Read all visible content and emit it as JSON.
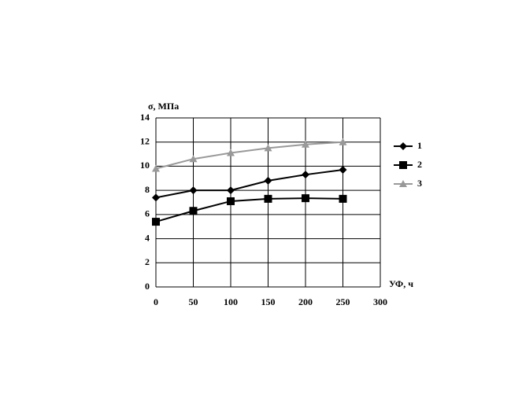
{
  "chart_data": {
    "type": "line",
    "y_label": "σ, МПа",
    "x_label": "УФ, ч",
    "x": [
      0,
      50,
      100,
      150,
      200,
      250
    ],
    "xlim": [
      0,
      300
    ],
    "xticks": [
      0,
      50,
      100,
      150,
      200,
      250,
      300
    ],
    "ylim": [
      0,
      14
    ],
    "yticks": [
      0,
      2,
      4,
      6,
      8,
      10,
      12,
      14
    ],
    "grid": true,
    "legend": "right",
    "series": [
      {
        "name": "1",
        "color": "#000000",
        "marker": "diamond",
        "values": [
          7.4,
          8.0,
          8.0,
          8.8,
          9.3,
          9.7
        ]
      },
      {
        "name": "2",
        "color": "#000000",
        "marker": "square",
        "values": [
          5.4,
          6.3,
          7.1,
          7.3,
          7.35,
          7.3
        ]
      },
      {
        "name": "3",
        "color": "#999999",
        "marker": "triangle",
        "values": [
          9.8,
          10.6,
          11.1,
          11.5,
          11.8,
          12.0
        ]
      }
    ]
  }
}
